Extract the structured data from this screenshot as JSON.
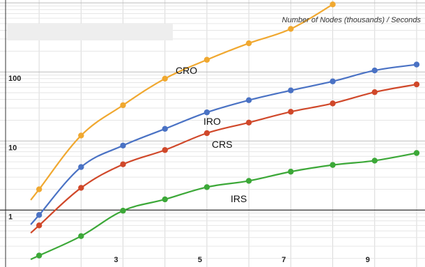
{
  "chart_data": {
    "type": "line",
    "title": "Number of Nodes (thousands) / Seconds",
    "y_scale": "log",
    "xlim": [
      0.2,
      10.2
    ],
    "ylim": [
      0.15,
      1100
    ],
    "x_ticks": [
      {
        "value": 3,
        "label": "3"
      },
      {
        "value": 5,
        "label": "5"
      },
      {
        "value": 7,
        "label": "7"
      },
      {
        "value": 9,
        "label": "9"
      }
    ],
    "y_ticks": [
      {
        "value": 1,
        "label": "1"
      },
      {
        "value": 10,
        "label": "10"
      },
      {
        "value": 100,
        "label": "100"
      }
    ],
    "grid": true,
    "series": [
      {
        "name": "CRO",
        "color": "#f0a830",
        "x": [
          1,
          2,
          3,
          4,
          5,
          6,
          7,
          8
        ],
        "y": [
          2.0,
          12,
          33,
          80,
          150,
          260,
          420,
          950
        ]
      },
      {
        "name": "IRO",
        "color": "#4a72c4",
        "x": [
          1,
          2,
          3,
          4,
          5,
          6,
          7,
          8,
          9,
          10
        ],
        "y": [
          0.85,
          4.2,
          8.6,
          15,
          26,
          39,
          54,
          73,
          105,
          128
        ]
      },
      {
        "name": "CRS",
        "color": "#d0482a",
        "x": [
          1,
          2,
          3,
          4,
          5,
          6,
          7,
          8,
          9,
          10
        ],
        "y": [
          0.6,
          2.1,
          4.6,
          7.4,
          13,
          18.5,
          26.5,
          35,
          51,
          66
        ]
      },
      {
        "name": "IRS",
        "color": "#3ca838",
        "x": [
          1,
          2,
          3,
          4,
          5,
          6,
          7,
          8,
          9,
          10
        ],
        "y": [
          0.22,
          0.42,
          0.98,
          1.43,
          2.15,
          2.65,
          3.6,
          4.5,
          5.2,
          6.7
        ]
      }
    ]
  }
}
